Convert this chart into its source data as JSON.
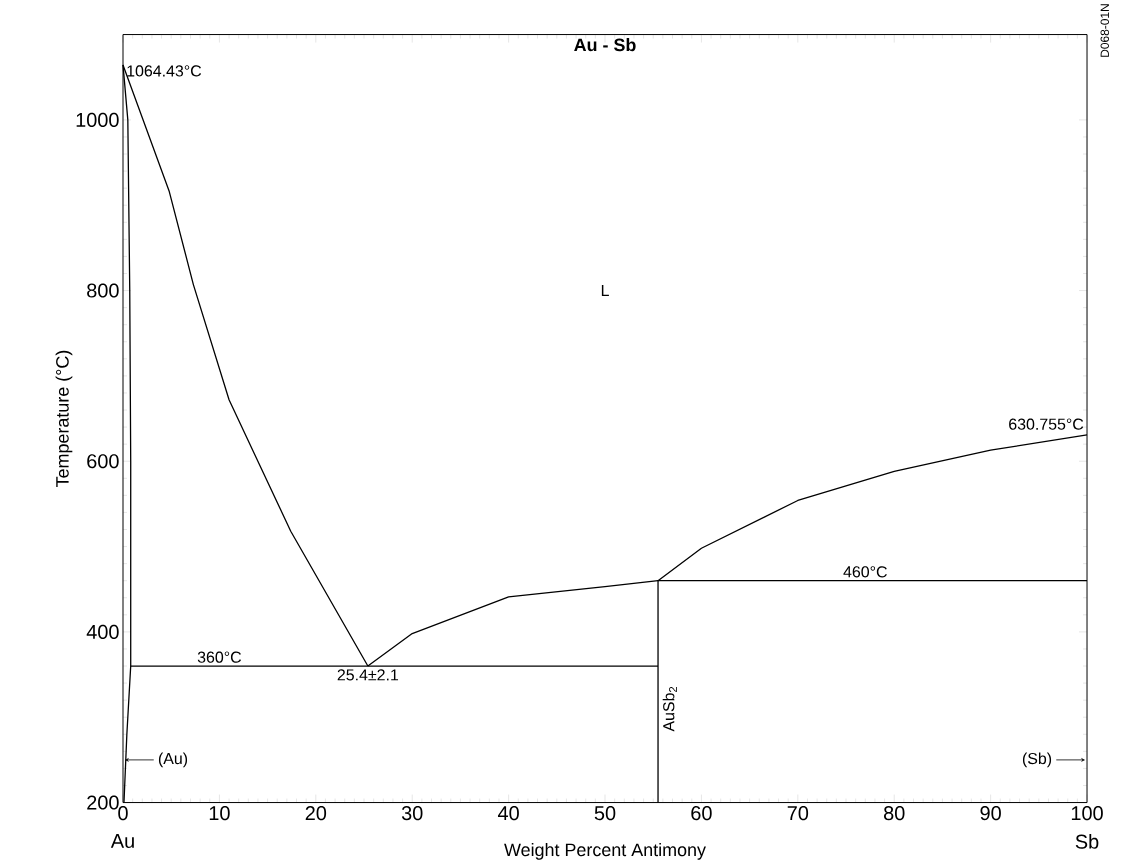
{
  "chart_data": {
    "type": "line",
    "title": "Au - Sb",
    "xlabel": "Weight Percent Antimony",
    "ylabel": "Temperature (°C)",
    "xlim": [
      0,
      100
    ],
    "ylim": [
      200,
      1100
    ],
    "xticks": [
      0,
      10,
      20,
      30,
      40,
      50,
      60,
      70,
      80,
      90,
      100
    ],
    "yticks": [
      200,
      400,
      600,
      800,
      1000
    ],
    "marker": "none",
    "line_style": "solid",
    "series": [
      {
        "color": "#000000",
        "x": [
          0,
          4.8,
          7.3,
          11.0,
          17.4,
          25.4
        ],
        "values": [
          1064.43,
          916,
          807,
          672,
          518,
          360
        ]
      },
      {
        "color": "#000000",
        "x": [
          25.4,
          30,
          40,
          50,
          55.5,
          60,
          70,
          80,
          90,
          100
        ],
        "values": [
          360,
          398,
          441,
          453,
          460,
          498,
          554,
          588,
          613,
          630.755
        ]
      },
      {
        "color": "#000000",
        "x": [
          0,
          0.5,
          0.7,
          0.8,
          0.8,
          0.4,
          0.1
        ],
        "values": [
          1064.43,
          1000,
          800,
          600,
          360,
          280,
          200
        ]
      },
      {
        "color": "#000000",
        "x": [
          0.8,
          55.5
        ],
        "values": [
          360,
          360
        ]
      },
      {
        "color": "#000000",
        "x": [
          55.5,
          100
        ],
        "values": [
          460,
          460
        ]
      },
      {
        "color": "#000000",
        "x": [
          55.5,
          55.5
        ],
        "values": [
          200,
          460
        ]
      }
    ],
    "annotations": [
      {
        "text": "1064.43°C",
        "x": 0,
        "y": 1064.43
      },
      "L",
      {
        "text": "630.755°C",
        "x": 100,
        "y": 630.755
      },
      {
        "text": "460°C",
        "x": 77,
        "y": 460
      },
      {
        "text": "360°C",
        "x": 10,
        "y": 360
      },
      {
        "text": "25.4±2.1",
        "x": 25.4,
        "y": 360
      },
      {
        "text": "AuSb$_{2}$",
        "x": 55.5,
        "y": 310
      },
      "(Au)",
      "(Sb)",
      "D068-01N",
      "Au",
      "Sb"
    ]
  }
}
